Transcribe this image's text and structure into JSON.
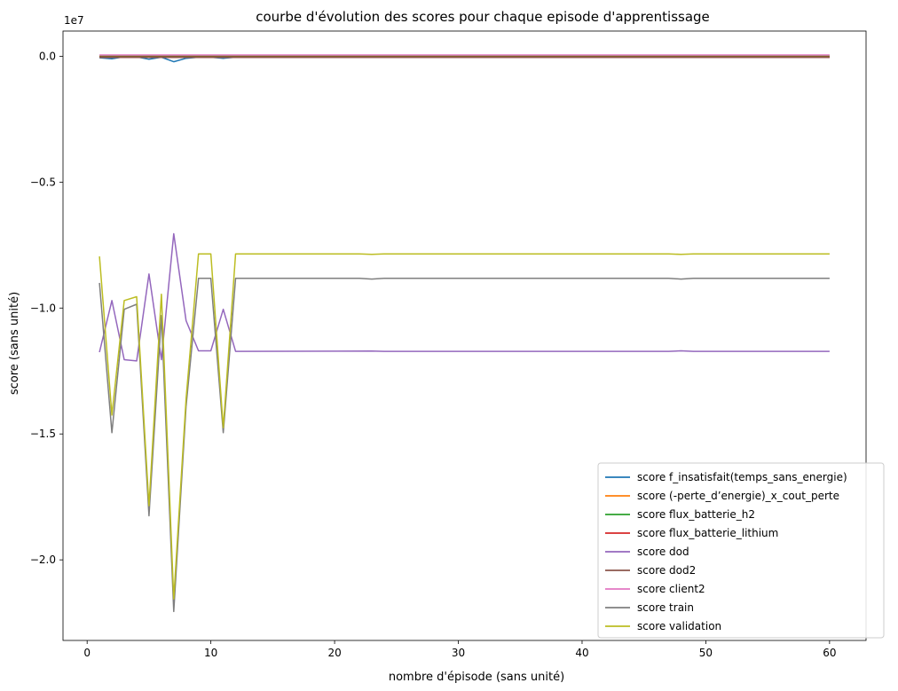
{
  "chart_data": {
    "type": "line",
    "title": "courbe d'évolution des scores pour chaque episode d'apprentissage",
    "xlabel": "nombre d'épisode (sans unité)",
    "ylabel": "score (sans unité)",
    "y_offset_label": "1e7",
    "xlim": [
      -1.95,
      62.95
    ],
    "ylim": [
      -23200000,
      1000000
    ],
    "xticks": [
      0,
      10,
      20,
      30,
      40,
      50,
      60
    ],
    "xtick_labels": [
      "0",
      "10",
      "20",
      "30",
      "40",
      "50",
      "60"
    ],
    "yticks": [
      0,
      -5000000,
      -10000000,
      -15000000,
      -20000000
    ],
    "ytick_labels": [
      "0.0",
      "−0.5",
      "−1.0",
      "−1.5",
      "−2.0"
    ],
    "grid": false,
    "legend_position": "lower-right",
    "series": [
      {
        "name": "score f_insatisfait(temps_sans_energie)",
        "color": "#1f77b4",
        "points": [
          [
            1,
            -60000
          ],
          [
            2,
            -100000
          ],
          [
            3,
            -20000
          ],
          [
            4,
            -30000
          ],
          [
            5,
            -120000
          ],
          [
            6,
            -40000
          ],
          [
            7,
            -220000
          ],
          [
            8,
            -80000
          ],
          [
            9,
            -40000
          ],
          [
            10,
            -40000
          ],
          [
            11,
            -80000
          ],
          [
            12,
            -40000
          ],
          [
            60,
            -40000
          ]
        ]
      },
      {
        "name": "score (-perte_d’energie)_x_cout_perte",
        "color": "#ff7f0e",
        "points": [
          [
            1,
            0
          ],
          [
            60,
            0
          ]
        ]
      },
      {
        "name": "score flux_batterie_h2",
        "color": "#2ca02c",
        "points": [
          [
            1,
            0
          ],
          [
            60,
            0
          ]
        ]
      },
      {
        "name": "score flux_batterie_lithium",
        "color": "#d62728",
        "points": [
          [
            1,
            -30000
          ],
          [
            60,
            -30000
          ]
        ]
      },
      {
        "name": "score dod",
        "color": "#9467bd",
        "points": [
          [
            1,
            -11750000
          ],
          [
            2,
            -9700000
          ],
          [
            3,
            -12050000
          ],
          [
            4,
            -12100000
          ],
          [
            5,
            -8650000
          ],
          [
            6,
            -12050000
          ],
          [
            7,
            -7050000
          ],
          [
            8,
            -10500000
          ],
          [
            9,
            -11700000
          ],
          [
            10,
            -11700000
          ],
          [
            11,
            -10050000
          ],
          [
            12,
            -11720000
          ],
          [
            23,
            -11710000
          ],
          [
            24,
            -11720000
          ],
          [
            47,
            -11720000
          ],
          [
            48,
            -11700000
          ],
          [
            49,
            -11720000
          ],
          [
            60,
            -11720000
          ]
        ]
      },
      {
        "name": "score dod2",
        "color": "#8c564b",
        "points": [
          [
            1,
            -50000
          ],
          [
            60,
            -50000
          ]
        ]
      },
      {
        "name": "score client2",
        "color": "#e377c2",
        "points": [
          [
            1,
            50000
          ],
          [
            60,
            50000
          ]
        ]
      },
      {
        "name": "score train",
        "color": "#7f7f7f",
        "points": [
          [
            1,
            -9000000
          ],
          [
            2,
            -14950000
          ],
          [
            3,
            -10050000
          ],
          [
            4,
            -9850000
          ],
          [
            5,
            -18250000
          ],
          [
            6,
            -10300000
          ],
          [
            7,
            -22050000
          ],
          [
            8,
            -13900000
          ],
          [
            9,
            -8820000
          ],
          [
            10,
            -8820000
          ],
          [
            11,
            -14950000
          ],
          [
            12,
            -8820000
          ],
          [
            22,
            -8820000
          ],
          [
            23,
            -8850000
          ],
          [
            24,
            -8820000
          ],
          [
            47,
            -8820000
          ],
          [
            48,
            -8850000
          ],
          [
            49,
            -8820000
          ],
          [
            60,
            -8820000
          ]
        ]
      },
      {
        "name": "score validation",
        "color": "#bcbd22",
        "points": [
          [
            1,
            -7950000
          ],
          [
            2,
            -14250000
          ],
          [
            3,
            -9700000
          ],
          [
            4,
            -9550000
          ],
          [
            5,
            -17850000
          ],
          [
            6,
            -9450000
          ],
          [
            7,
            -21550000
          ],
          [
            8,
            -13600000
          ],
          [
            9,
            -7850000
          ],
          [
            10,
            -7850000
          ],
          [
            11,
            -14750000
          ],
          [
            12,
            -7850000
          ],
          [
            22,
            -7850000
          ],
          [
            23,
            -7870000
          ],
          [
            24,
            -7850000
          ],
          [
            47,
            -7850000
          ],
          [
            48,
            -7870000
          ],
          [
            49,
            -7850000
          ],
          [
            60,
            -7850000
          ]
        ]
      }
    ]
  }
}
